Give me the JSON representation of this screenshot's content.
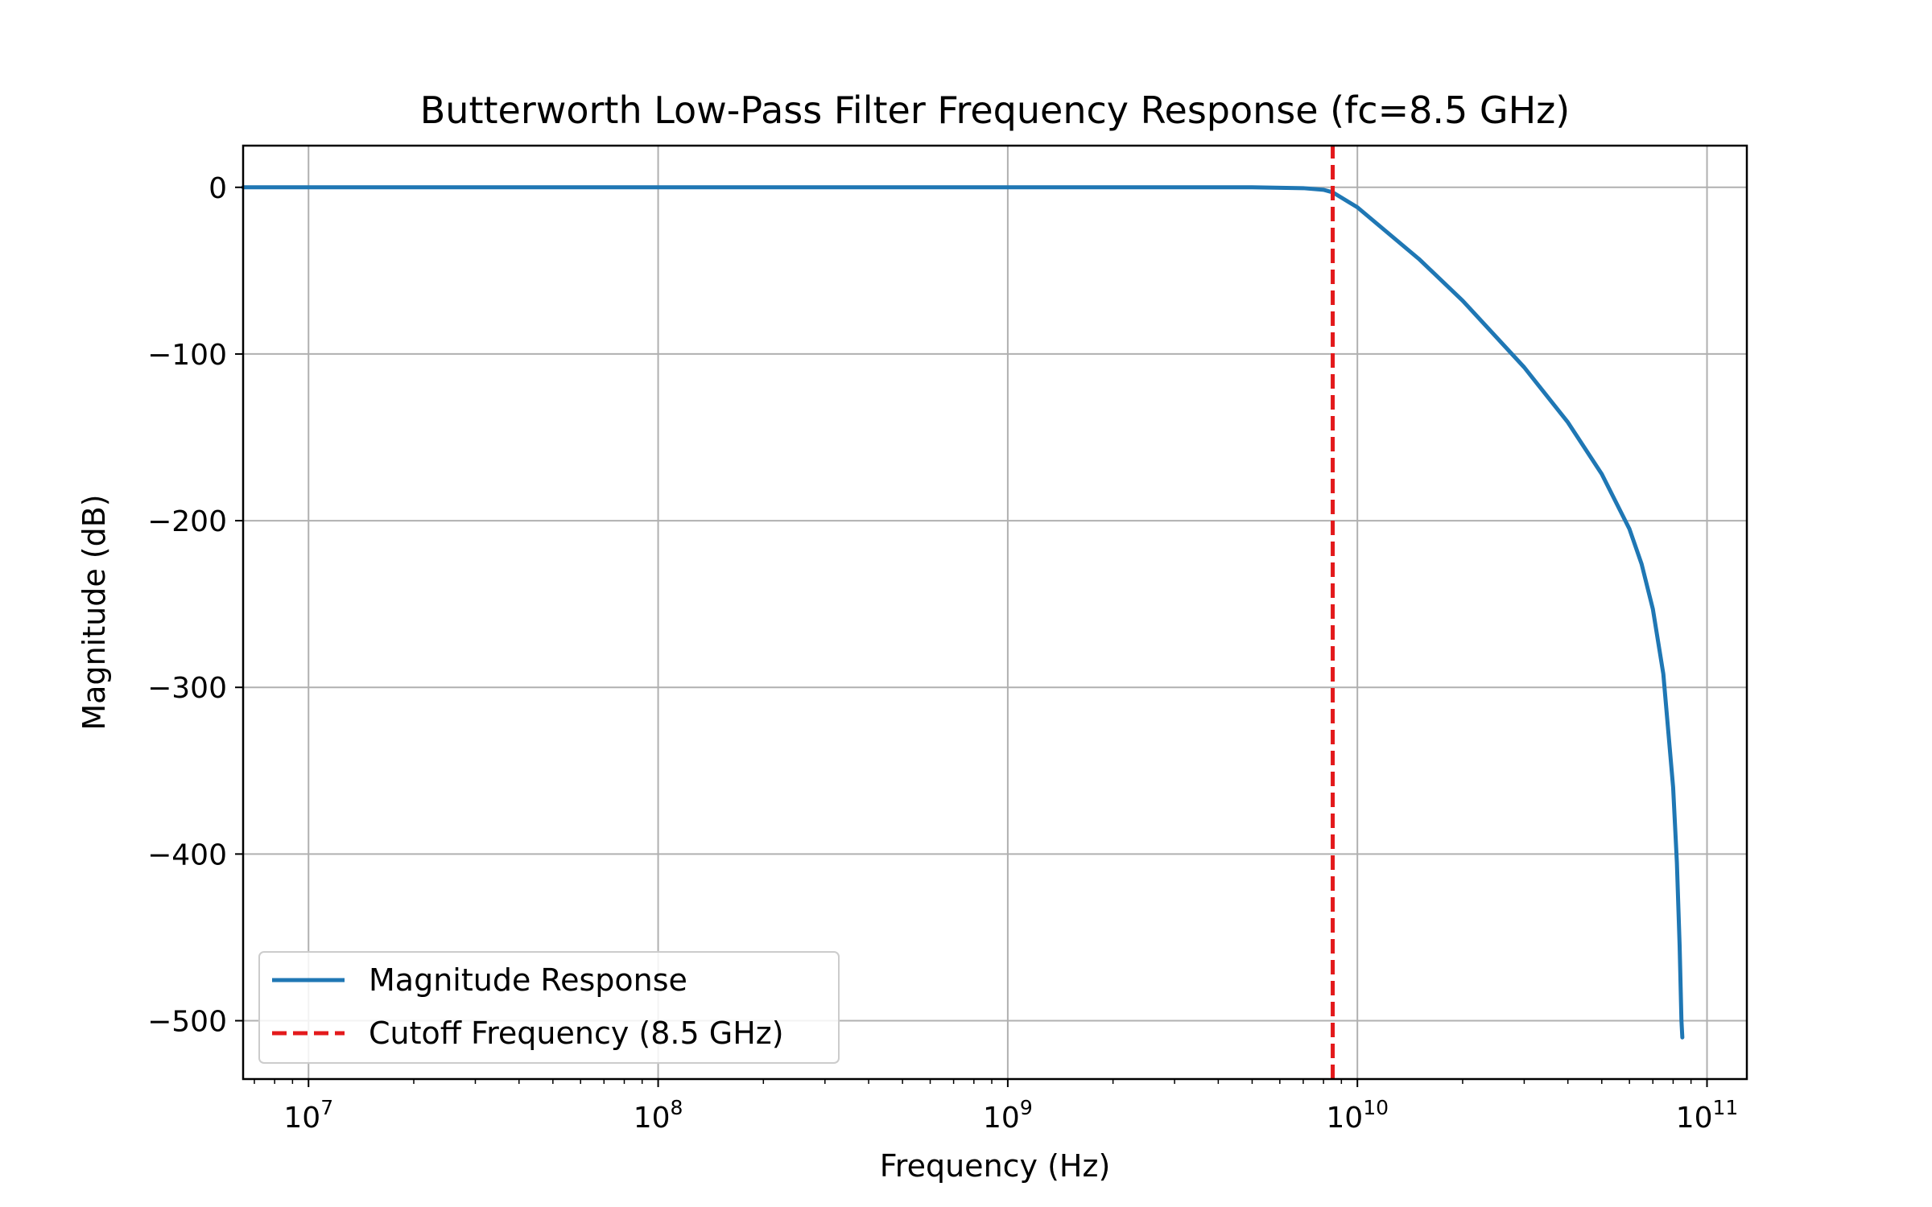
{
  "chart_data": {
    "type": "line",
    "title": "Butterworth Low-Pass Filter Frequency Response (fc=8.5 GHz)",
    "xlabel": "Frequency (Hz)",
    "ylabel": "Magnitude (dB)",
    "xscale": "log",
    "xlim": [
      6500000,
      130000000000
    ],
    "ylim": [
      -535,
      25
    ],
    "grid": true,
    "legend_position": "lower-left",
    "x_ticks": [
      {
        "value": 10000000,
        "base": "10",
        "exp": "7"
      },
      {
        "value": 100000000,
        "base": "10",
        "exp": "8"
      },
      {
        "value": 1000000000,
        "base": "10",
        "exp": "9"
      },
      {
        "value": 10000000000,
        "base": "10",
        "exp": "10"
      },
      {
        "value": 100000000000,
        "base": "10",
        "exp": "11"
      }
    ],
    "y_ticks": [
      {
        "value": 0,
        "label": "0"
      },
      {
        "value": -100,
        "label": "−100"
      },
      {
        "value": -200,
        "label": "−200"
      },
      {
        "value": -300,
        "label": "−300"
      },
      {
        "value": -400,
        "label": "−400"
      },
      {
        "value": -500,
        "label": "−500"
      }
    ],
    "series": [
      {
        "name": "Magnitude Response",
        "color": "#1f77b4",
        "style": "solid",
        "x": [
          6500000,
          100000000,
          1000000000,
          5000000000,
          7000000000,
          8000000000,
          8500000000,
          10000000000,
          15000000000,
          20000000000,
          30000000000,
          40000000000,
          50000000000,
          60000000000,
          65000000000,
          70000000000,
          75000000000,
          80000000000,
          82000000000,
          83500000000,
          84500000000,
          85000000000
        ],
        "y": [
          0,
          0,
          0,
          0,
          -0.5,
          -1.5,
          -3,
          -12,
          -43,
          -68,
          -108,
          -141,
          -172,
          -205,
          -226,
          -253,
          -292,
          -360,
          -405,
          -455,
          -500,
          -510
        ]
      },
      {
        "name": "Cutoff Frequency (8.5 GHz)",
        "color": "#e31a1c",
        "style": "dashed",
        "x": [
          8500000000,
          8500000000
        ],
        "y": [
          -535,
          25
        ]
      }
    ]
  }
}
